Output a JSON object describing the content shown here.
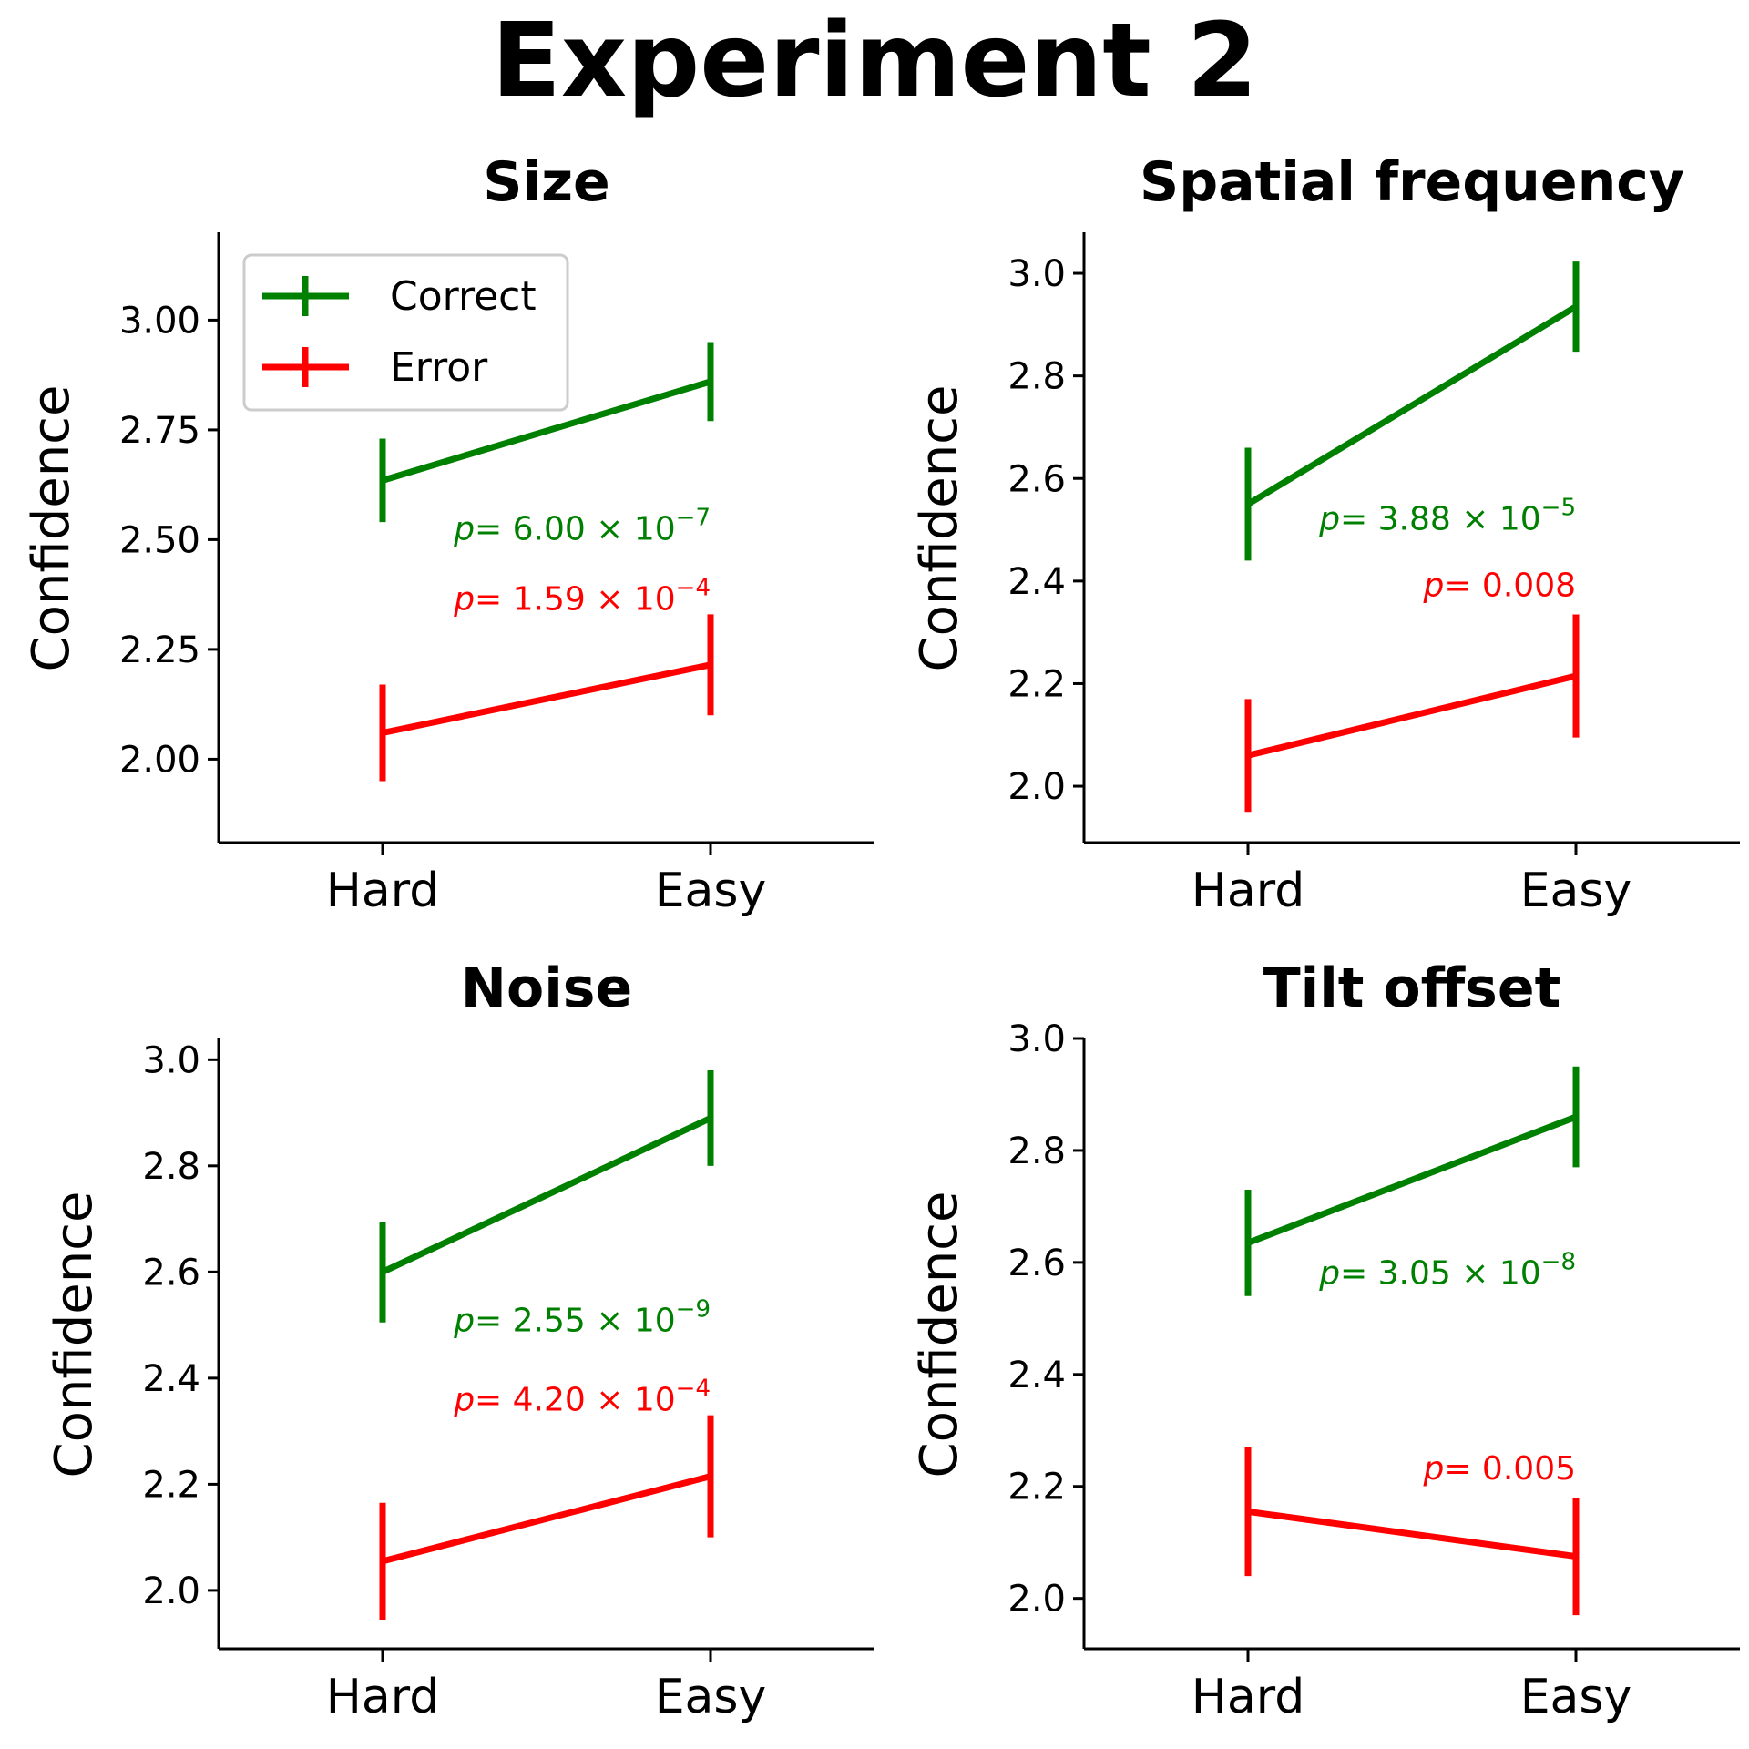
{
  "suptitle": "Experiment 2",
  "colors": {
    "correct": "#008000",
    "error": "#ff0000"
  },
  "legend": {
    "placement": "upper-left",
    "shown_in_panel": 0,
    "entries": [
      "Correct",
      "Error"
    ]
  },
  "chart_data": [
    {
      "type": "line",
      "title": "Size",
      "ylabel": "Confidence",
      "xlabel": "",
      "categories": [
        "Hard",
        "Easy"
      ],
      "ylim": [
        1.81,
        3.2
      ],
      "yticks": [
        "2.00",
        "2.25",
        "2.50",
        "2.75",
        "3.00"
      ],
      "grid": false,
      "series": [
        {
          "name": "Correct",
          "color": "#008000",
          "values": [
            2.635,
            2.86
          ],
          "errors": [
            0.095,
            0.09
          ],
          "annotation": {
            "text": "= 6.00 × 10",
            "exp": "−7"
          }
        },
        {
          "name": "Error",
          "color": "#ff0000",
          "values": [
            2.06,
            2.215
          ],
          "errors": [
            0.11,
            0.115
          ],
          "annotation": {
            "text": "= 1.59 × 10",
            "exp": "−4"
          }
        }
      ]
    },
    {
      "type": "line",
      "title": "Spatial frequency",
      "ylabel": "Confidence",
      "xlabel": "",
      "categories": [
        "Hard",
        "Easy"
      ],
      "ylim": [
        1.89,
        3.08
      ],
      "yticks": [
        "2.0",
        "2.2",
        "2.4",
        "2.6",
        "2.8",
        "3.0"
      ],
      "grid": false,
      "series": [
        {
          "name": "Correct",
          "color": "#008000",
          "values": [
            2.55,
            2.935
          ],
          "errors": [
            0.11,
            0.088
          ],
          "annotation": {
            "text": "= 3.88 × 10",
            "exp": "−5"
          }
        },
        {
          "name": "Error",
          "color": "#ff0000",
          "values": [
            2.06,
            2.215
          ],
          "errors": [
            0.11,
            0.12
          ],
          "annotation": {
            "text": "= 0.008",
            "exp": ""
          }
        }
      ]
    },
    {
      "type": "line",
      "title": "Noise",
      "ylabel": "Confidence",
      "xlabel": "",
      "categories": [
        "Hard",
        "Easy"
      ],
      "ylim": [
        1.89,
        3.04
      ],
      "yticks": [
        "2.0",
        "2.2",
        "2.4",
        "2.6",
        "2.8",
        "3.0"
      ],
      "grid": false,
      "series": [
        {
          "name": "Correct",
          "color": "#008000",
          "values": [
            2.6,
            2.89
          ],
          "errors": [
            0.095,
            0.09
          ],
          "annotation": {
            "text": "= 2.55 × 10",
            "exp": "−9"
          }
        },
        {
          "name": "Error",
          "color": "#ff0000",
          "values": [
            2.055,
            2.215
          ],
          "errors": [
            0.11,
            0.115
          ],
          "annotation": {
            "text": "= 4.20 × 10",
            "exp": "−4"
          }
        }
      ]
    },
    {
      "type": "line",
      "title": "Tilt offset",
      "ylabel": "Confidence",
      "xlabel": "",
      "categories": [
        "Hard",
        "Easy"
      ],
      "ylim": [
        1.91,
        3.0
      ],
      "yticks": [
        "2.0",
        "2.2",
        "2.4",
        "2.6",
        "2.8",
        "3.0"
      ],
      "grid": false,
      "series": [
        {
          "name": "Correct",
          "color": "#008000",
          "values": [
            2.635,
            2.86
          ],
          "errors": [
            0.095,
            0.09
          ],
          "annotation": {
            "text": "= 3.05 × 10",
            "exp": "−8"
          }
        },
        {
          "name": "Error",
          "color": "#ff0000",
          "values": [
            2.155,
            2.075
          ],
          "errors": [
            0.115,
            0.105
          ],
          "annotation": {
            "text": "= 0.005",
            "exp": ""
          }
        }
      ]
    }
  ]
}
